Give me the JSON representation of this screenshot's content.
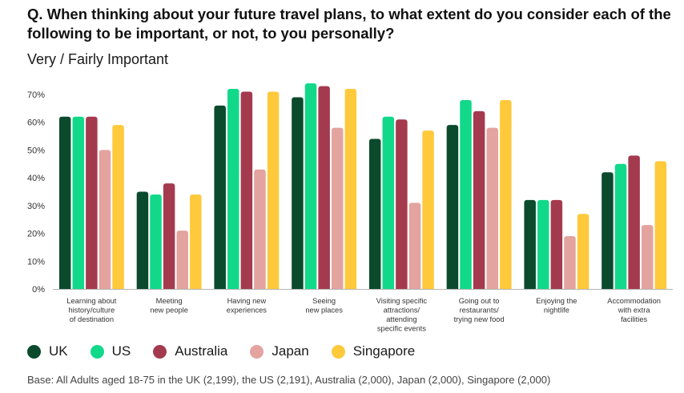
{
  "header": {
    "question": "Q. When thinking about your future travel plans, to what extent do you consider each of the following to be important, or not, to you personally?",
    "subtitle": "Very / Fairly Important"
  },
  "footer": {
    "base": "Base: All Adults aged 18-75 in the UK (2,199), the US (2,191), Australia (2,000), Japan (2,000), Singapore (2,000)"
  },
  "chart_data": {
    "type": "bar",
    "title": "",
    "xlabel": "",
    "ylabel": "",
    "ylim": [
      0,
      70
    ],
    "yticks": [
      "0%",
      "10%",
      "20%",
      "30%",
      "40%",
      "50%",
      "60%",
      "70%"
    ],
    "grid": false,
    "legend_position": "bottom-left",
    "categories": [
      [
        "Learning about",
        "history/culture",
        "of destination"
      ],
      [
        "Meeting",
        "new people"
      ],
      [
        "Having new",
        "experiences"
      ],
      [
        "Seeing",
        "new places"
      ],
      [
        "Visiting specific",
        "attractions/",
        "attending",
        "specific events"
      ],
      [
        "Going out to",
        "restaurants/",
        "trying new food"
      ],
      [
        "Enjoying the",
        "nightlife"
      ],
      [
        "Accommodation",
        "with extra",
        "facilities"
      ]
    ],
    "series": [
      {
        "name": "UK",
        "color": "#0b4a2c",
        "values": [
          62,
          35,
          66,
          69,
          54,
          59,
          32,
          42
        ]
      },
      {
        "name": "US",
        "color": "#12d98a",
        "values": [
          62,
          34,
          72,
          74,
          62,
          68,
          32,
          45
        ]
      },
      {
        "name": "Australia",
        "color": "#a43a4e",
        "values": [
          62,
          38,
          71,
          73,
          61,
          64,
          32,
          48
        ]
      },
      {
        "name": "Japan",
        "color": "#e3a39f",
        "values": [
          50,
          21,
          43,
          58,
          31,
          58,
          19,
          23
        ]
      },
      {
        "name": "Singapore",
        "color": "#ffc93c",
        "values": [
          59,
          34,
          71,
          72,
          57,
          68,
          27,
          46
        ]
      }
    ]
  }
}
